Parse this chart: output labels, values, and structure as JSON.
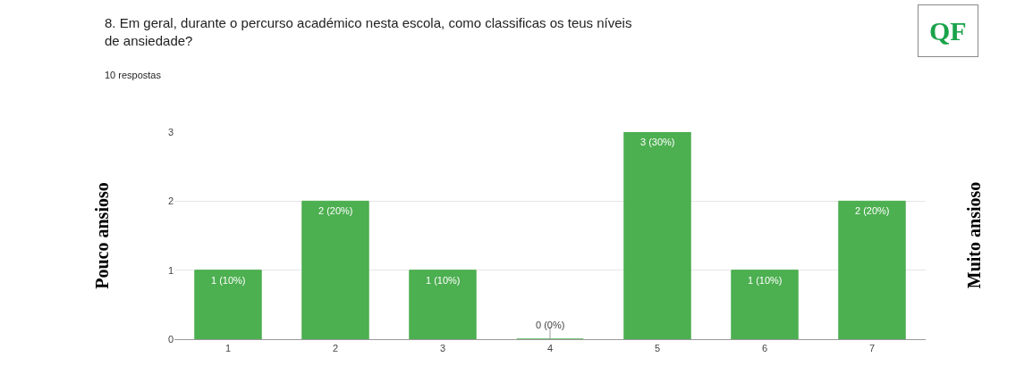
{
  "chart_data": {
    "type": "bar",
    "title": "8. Em geral, durante o percurso académico nesta escola, como classificas os teus níveis de ansiedade?",
    "subtitle": "10 respostas",
    "ylabel": "Pouco ansioso",
    "y2label": "Muito ansioso",
    "annotations": [
      "QF"
    ],
    "categories": [
      "1",
      "2",
      "3",
      "4",
      "5",
      "6",
      "7"
    ],
    "values": [
      1,
      2,
      1,
      0,
      3,
      1,
      2
    ],
    "value_labels": [
      "1 (10%)",
      "2 (20%)",
      "1 (10%)",
      "0 (0%)",
      "3 (30%)",
      "1 (10%)",
      "2 (20%)"
    ],
    "color": "#4caf50",
    "ylim": [
      0,
      3
    ],
    "yticks": [
      0,
      1,
      2,
      3
    ],
    "grid": "y",
    "legend": false
  }
}
